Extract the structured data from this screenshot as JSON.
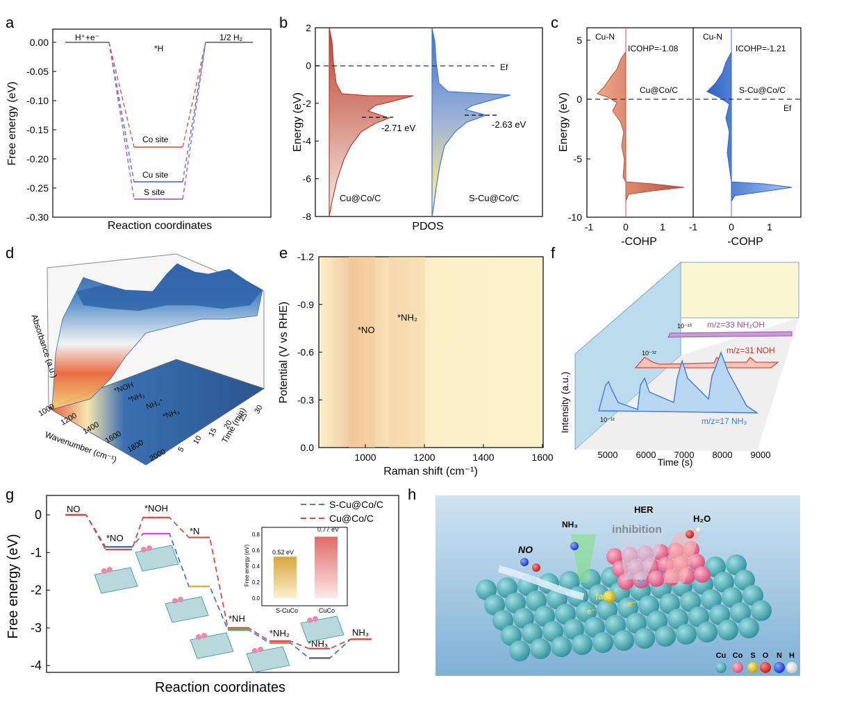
{
  "panel_letters": [
    "a",
    "b",
    "c",
    "d",
    "e",
    "f",
    "g",
    "h"
  ],
  "colors": {
    "co": "#d95f4a",
    "cu": "#4a7fd4",
    "s": "#b45bc8",
    "red": "#d94a3a",
    "blue": "#3f78d6",
    "cream": "#faf3cc",
    "orange": "#f0c89a"
  },
  "panel_a": {
    "ylabel": "Free energy (eV)",
    "xlabel": "Reaction coordinates",
    "y_ticks": [
      "0.00",
      "-0.05",
      "-0.10",
      "-0.15",
      "-0.20",
      "-0.25",
      "-0.30"
    ],
    "step_labels": {
      "start": "H⁺+e⁻",
      "mid": "*H",
      "end": "1/2 H₂"
    },
    "site_labels": {
      "co": "Co site",
      "cu": "Cu site",
      "s": "S site"
    }
  },
  "panel_b": {
    "ylabel": "Energy (eV)",
    "xlabel": "PDOS",
    "y_ticks": [
      "2",
      "0",
      "-2",
      "-4",
      "-6",
      "-8"
    ],
    "ef_label": "Ef",
    "left_center": "-2.71 eV",
    "right_center": "-2.63 eV",
    "left_name": "Cu@Co/C",
    "right_name": "S-Cu@Co/C"
  },
  "panel_c": {
    "ylabel": "Energy (eV)",
    "xlabel": "-COHP",
    "y_ticks": [
      "5",
      "0",
      "-5",
      "-10"
    ],
    "x_ticks": [
      "-1",
      "0",
      "1"
    ],
    "bond": "Cu-N",
    "left_icohp": "ICOHP=-1.08",
    "right_icohp": "ICOHP=-1.21",
    "left_name": "Cu@Co/C",
    "right_name": "S-Cu@Co/C",
    "ef_label": "Ef"
  },
  "panel_d": {
    "zlabel": "Absorbance (a.u.)",
    "xlabel": "Wavenumber (cm⁻¹)",
    "ylabel": "Time (min)",
    "x_ticks": [
      "1000",
      "1200",
      "1400",
      "1600",
      "1800",
      "2000"
    ],
    "y_ticks": [
      "5",
      "10",
      "15",
      "20",
      "25",
      "30"
    ],
    "species": [
      "*NOH",
      "*NH₂",
      "NH₄⁺",
      "*NH₃"
    ]
  },
  "panel_e": {
    "ylabel": "Potential (V vs RHE)",
    "xlabel": "Raman shift (cm⁻¹)",
    "y_ticks": [
      "-1.2",
      "-0.9",
      "-0.6",
      "-0.3",
      "0.0"
    ],
    "x_ticks": [
      "1000",
      "1200",
      "1400",
      "1600"
    ],
    "species": [
      "*NO",
      "*NH₂"
    ]
  },
  "panel_f": {
    "ylabel": "Intensity (a.u.)",
    "xlabel": "Time (s)",
    "x_ticks": [
      "5000",
      "6000",
      "7000",
      "8000",
      "9000"
    ],
    "traces": [
      {
        "label": "m/z=33 NH₂OH",
        "scale": "10⁻¹³"
      },
      {
        "label": "m/z=31 NOH",
        "scale": "10⁻¹²"
      },
      {
        "label": "m/z=17 NH₃",
        "scale": "10⁻¹²"
      }
    ]
  },
  "panel_g": {
    "ylabel": "Free energy (eV)",
    "xlabel": "Reaction coordinates",
    "y_ticks": [
      "0",
      "-1",
      "-2",
      "-3",
      "-4"
    ],
    "legend": [
      "S-Cu@Co/C",
      "Cu@Co/C"
    ],
    "steps": [
      "NO",
      "*NO",
      "*NOH",
      "*N",
      "*NH",
      "*NH₂",
      "*NH₃",
      "NH₃"
    ],
    "inset": {
      "ylabel": "Free energy (eV)",
      "y_ticks": [
        "0.0",
        "0.2",
        "0.4",
        "0.6",
        "0.8"
      ],
      "bars": [
        {
          "name": "S-CuCo",
          "value_label": "0.52 eV"
        },
        {
          "name": "CuCo",
          "value_label": "0.77 eV"
        }
      ]
    }
  },
  "panel_h": {
    "labels": {
      "her": "HER",
      "inhibition": "inhibition",
      "h2o": "H₂O",
      "nh3": "NH₃",
      "no": "NO",
      "fast": "fast",
      "e": "e⁻"
    },
    "legend": [
      "Cu",
      "Co",
      "S",
      "O",
      "N",
      "H"
    ]
  },
  "chart_data": [
    {
      "type": "line",
      "title": "",
      "xlabel": "Reaction coordinates",
      "ylabel": "Free energy (eV)",
      "ylim": [
        -0.3,
        0.0
      ],
      "categories": [
        "H⁺+e⁻",
        "*H",
        "1/2 H₂"
      ],
      "series": [
        {
          "name": "Co site",
          "values": [
            0,
            -0.18,
            0
          ]
        },
        {
          "name": "Cu site",
          "values": [
            0,
            -0.24,
            0
          ]
        },
        {
          "name": "S site",
          "values": [
            0,
            -0.27,
            0
          ]
        }
      ]
    },
    {
      "type": "area",
      "title": "",
      "xlabel": "PDOS",
      "ylabel": "Energy (eV)",
      "ylim": [
        -8,
        2
      ],
      "series": [
        {
          "name": "Cu@Co/C",
          "d_band_center": -2.71
        },
        {
          "name": "S-Cu@Co/C",
          "d_band_center": -2.63
        }
      ]
    },
    {
      "type": "area",
      "title": "",
      "xlabel": "-COHP",
      "ylabel": "Energy (eV)",
      "ylim": [
        -10,
        6
      ],
      "xlim": [
        -1,
        1.6
      ],
      "series": [
        {
          "name": "Cu@Co/C",
          "icohp": -1.08
        },
        {
          "name": "S-Cu@Co/C",
          "icohp": -1.21
        }
      ]
    },
    {
      "type": "line",
      "title": "",
      "xlabel": "Reaction coordinates",
      "ylabel": "Free energy (eV)",
      "ylim": [
        -4.2,
        0.2
      ],
      "categories": [
        "NO",
        "*NO",
        "*NOH",
        "*N",
        "*NH",
        "*NH₂",
        "*NH₃",
        "NH₃"
      ],
      "series": [
        {
          "name": "S-Cu@Co/C",
          "values": [
            0,
            -0.85,
            -0.5,
            -1.9,
            -3.05,
            -3.4,
            -3.8,
            -3.3
          ]
        },
        {
          "name": "Cu@Co/C",
          "values": [
            0,
            -0.92,
            -0.07,
            -0.6,
            -3.0,
            -3.35,
            -3.55,
            -3.3
          ]
        }
      ]
    },
    {
      "type": "bar",
      "title": "",
      "ylabel": "Free energy (eV)",
      "ylim": [
        0,
        0.8
      ],
      "categories": [
        "S-CuCo",
        "CuCo"
      ],
      "values": [
        0.52,
        0.77
      ]
    }
  ]
}
